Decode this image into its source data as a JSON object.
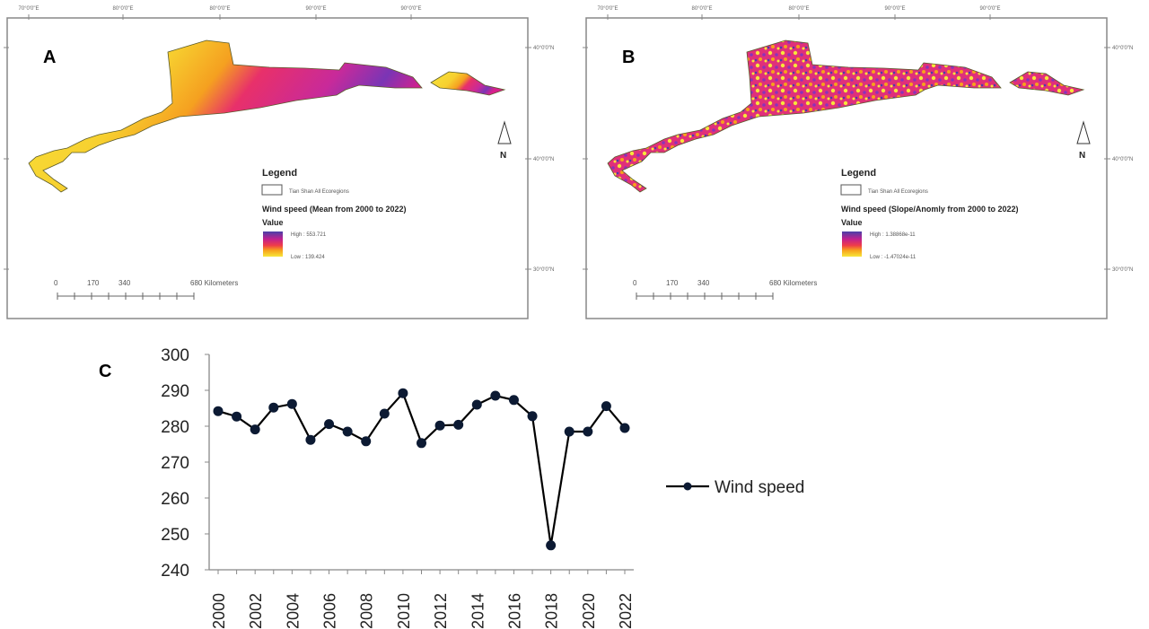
{
  "maps": [
    {
      "panel_label": "A",
      "lon_labels": [
        "70°0'0\"E",
        "80°0'0\"E",
        "80°0'0\"E",
        "90°0'0\"E",
        "90°0'0\"E"
      ],
      "lat_labels": [
        "40°0'0\"N",
        "40°0'0\"N",
        "30°0'0\"N"
      ],
      "north_label": "N",
      "legend_title": "Legend",
      "boundary_label": "Tian Shan All Ecoregions",
      "layer_title": "Wind speed (Mean from 2000 to 2022)",
      "value_label": "Value",
      "high_label": "High : 553.721",
      "low_label": "Low : 139.424",
      "scale_labels": [
        "0",
        "170",
        "340",
        "680 Kilometers"
      ],
      "colors": [
        "#f7e63a",
        "#f7a21b",
        "#ef3b4a",
        "#d8208c",
        "#8a33b8",
        "#4a3fa8"
      ]
    },
    {
      "panel_label": "B",
      "lon_labels": [
        "70°0'0\"E",
        "80°0'0\"E",
        "80°0'0\"E",
        "90°0'0\"E",
        "90°0'0\"E"
      ],
      "lat_labels": [
        "40°0'0\"N",
        "40°0'0\"N",
        "30°0'0\"N"
      ],
      "north_label": "N",
      "legend_title": "Legend",
      "boundary_label": "Tian Shan All Ecoregions",
      "layer_title": "Wind speed (Slope/Anomly from 2000 to 2022)",
      "value_label": "Value",
      "high_label": "High : 1.38868e-11",
      "low_label": "Low : -1.47024e-11",
      "scale_labels": [
        "0",
        "170",
        "340",
        "680 Kilometers"
      ],
      "colors": [
        "#f7e63a",
        "#f7a21b",
        "#ef3b4a",
        "#d8208c",
        "#8a33b8",
        "#4a3fa8"
      ]
    }
  ],
  "chart_data": {
    "type": "line",
    "panel_label": "C",
    "x": [
      2000,
      2001,
      2002,
      2003,
      2004,
      2005,
      2006,
      2007,
      2008,
      2009,
      2010,
      2011,
      2012,
      2013,
      2014,
      2015,
      2016,
      2017,
      2018,
      2019,
      2020,
      2021,
      2022
    ],
    "x_tick_labels": [
      "2000",
      "2002",
      "2004",
      "2006",
      "2008",
      "2010",
      "2012",
      "2014",
      "2016",
      "2018",
      "2020",
      "2022"
    ],
    "series": [
      {
        "name": "Wind speed",
        "color": "#000000",
        "values": [
          284.2,
          282.7,
          279.1,
          285.2,
          286.2,
          276.2,
          280.6,
          278.5,
          275.8,
          283.5,
          289.2,
          275.3,
          280.2,
          280.4,
          286.0,
          288.5,
          287.3,
          282.8,
          246.8,
          278.5,
          278.5,
          285.6,
          279.5
        ]
      }
    ],
    "y_tick_labels": [
      "240",
      "250",
      "260",
      "270",
      "280",
      "290",
      "300"
    ],
    "ylim": [
      240,
      300
    ],
    "xlabel": "",
    "ylabel": "",
    "grid": false,
    "legend_position": "right"
  }
}
